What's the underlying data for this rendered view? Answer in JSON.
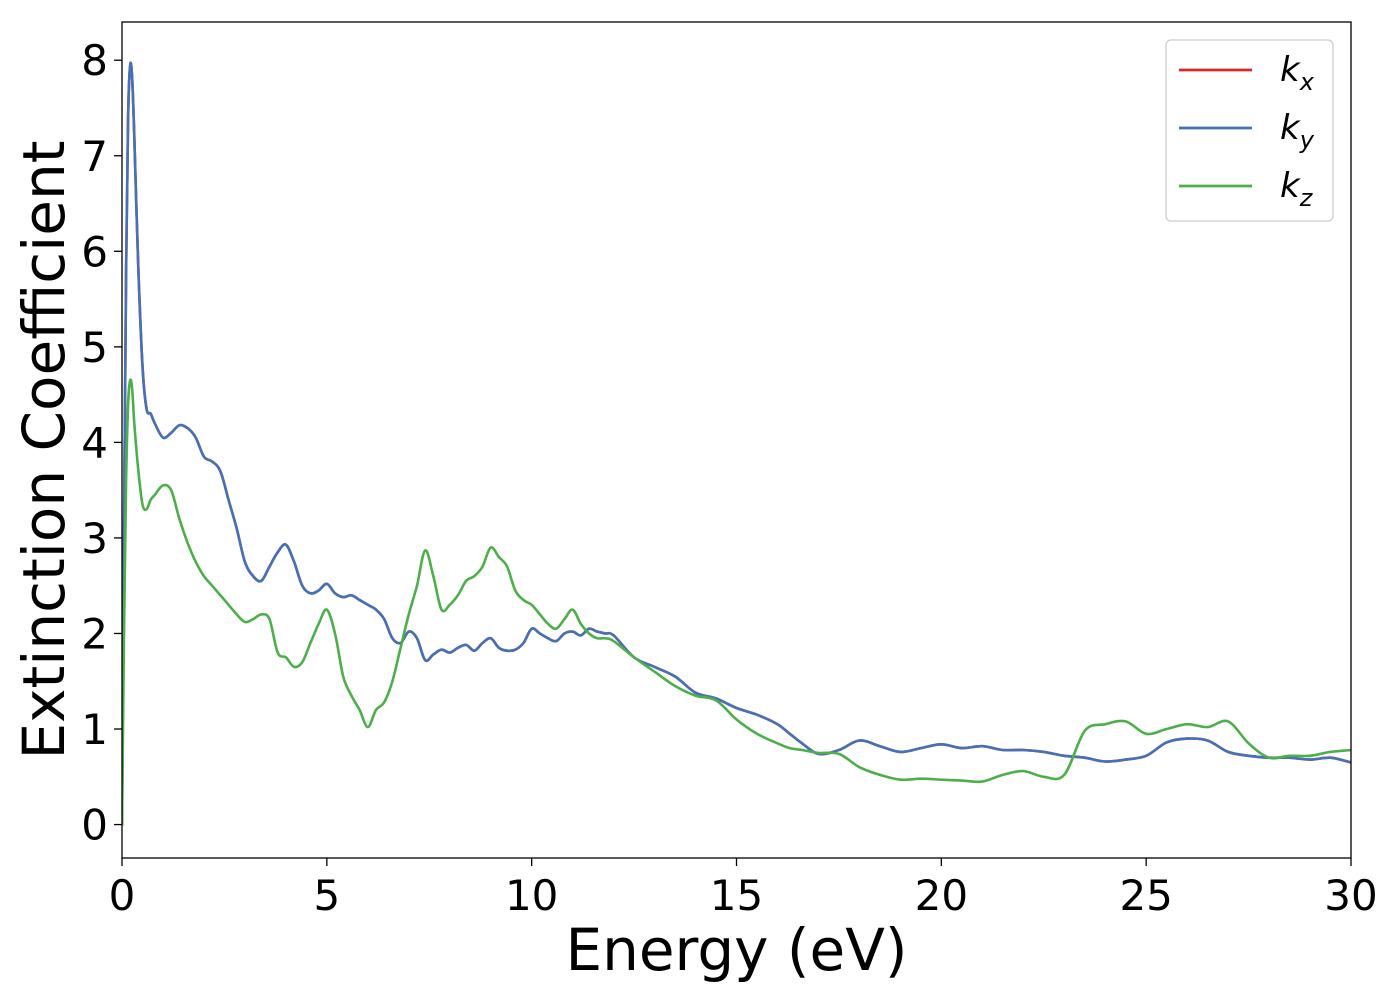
{
  "chart_data": {
    "type": "line",
    "xlabel": "Energy (eV)",
    "ylabel": "Extinction Coefficient",
    "xlim": [
      0,
      30
    ],
    "ylim": [
      -0.35,
      8.4
    ],
    "xticks": [
      0,
      5,
      10,
      15,
      20,
      25,
      30
    ],
    "yticks": [
      0,
      1,
      2,
      3,
      4,
      5,
      6,
      7,
      8
    ],
    "legend": "top-right",
    "grid": false,
    "series": [
      {
        "name": "k",
        "subscript": "x",
        "color": "#d62728",
        "x": [
          0,
          0.05,
          0.1,
          0.15,
          0.2,
          0.25,
          0.3,
          0.4,
          0.5,
          0.6,
          0.7,
          0.8,
          1.0,
          1.2,
          1.4,
          1.6,
          1.8,
          2.0,
          2.2,
          2.4,
          2.6,
          2.8,
          3.0,
          3.2,
          3.4,
          3.6,
          3.8,
          4.0,
          4.2,
          4.4,
          4.6,
          4.8,
          5.0,
          5.2,
          5.4,
          5.6,
          5.8,
          6.0,
          6.2,
          6.4,
          6.6,
          6.8,
          7.0,
          7.2,
          7.4,
          7.6,
          7.8,
          8.0,
          8.2,
          8.4,
          8.6,
          8.8,
          9.0,
          9.2,
          9.4,
          9.6,
          9.8,
          10.0,
          10.2,
          10.4,
          10.6,
          10.8,
          11.0,
          11.2,
          11.4,
          11.6,
          11.8,
          12.0,
          12.5,
          13.0,
          13.5,
          14.0,
          14.5,
          15.0,
          15.5,
          16.0,
          16.3,
          16.6,
          17.0,
          17.5,
          18.0,
          18.5,
          19.0,
          19.5,
          20.0,
          20.5,
          21.0,
          21.5,
          22.0,
          22.5,
          23.0,
          23.5,
          24.0,
          24.5,
          25.0,
          25.5,
          26.0,
          26.5,
          27.0,
          27.5,
          28.0,
          28.5,
          29.0,
          29.5,
          30.0
        ],
        "y": [
          0,
          3.0,
          5.8,
          7.4,
          7.95,
          7.8,
          7.2,
          5.8,
          4.8,
          4.35,
          4.3,
          4.2,
          4.05,
          4.1,
          4.18,
          4.15,
          4.05,
          3.85,
          3.8,
          3.7,
          3.4,
          3.1,
          2.75,
          2.6,
          2.55,
          2.7,
          2.85,
          2.93,
          2.75,
          2.5,
          2.42,
          2.45,
          2.52,
          2.42,
          2.38,
          2.4,
          2.35,
          2.3,
          2.25,
          2.15,
          1.95,
          1.9,
          2.02,
          1.95,
          1.72,
          1.78,
          1.83,
          1.8,
          1.85,
          1.88,
          1.82,
          1.9,
          1.95,
          1.85,
          1.82,
          1.83,
          1.9,
          2.05,
          2.0,
          1.95,
          1.92,
          2.0,
          2.02,
          1.98,
          2.05,
          2.02,
          2.0,
          1.98,
          1.75,
          1.65,
          1.55,
          1.38,
          1.32,
          1.22,
          1.15,
          1.05,
          0.95,
          0.85,
          0.74,
          0.78,
          0.88,
          0.82,
          0.76,
          0.8,
          0.84,
          0.8,
          0.82,
          0.78,
          0.78,
          0.76,
          0.72,
          0.7,
          0.66,
          0.68,
          0.72,
          0.86,
          0.9,
          0.88,
          0.76,
          0.72,
          0.7,
          0.7,
          0.68,
          0.7,
          0.65
        ]
      },
      {
        "name": "k",
        "subscript": "y",
        "color": "#4472b8",
        "x": [
          0,
          0.05,
          0.1,
          0.15,
          0.2,
          0.25,
          0.3,
          0.4,
          0.5,
          0.6,
          0.7,
          0.8,
          1.0,
          1.2,
          1.4,
          1.6,
          1.8,
          2.0,
          2.2,
          2.4,
          2.6,
          2.8,
          3.0,
          3.2,
          3.4,
          3.6,
          3.8,
          4.0,
          4.2,
          4.4,
          4.6,
          4.8,
          5.0,
          5.2,
          5.4,
          5.6,
          5.8,
          6.0,
          6.2,
          6.4,
          6.6,
          6.8,
          7.0,
          7.2,
          7.4,
          7.6,
          7.8,
          8.0,
          8.2,
          8.4,
          8.6,
          8.8,
          9.0,
          9.2,
          9.4,
          9.6,
          9.8,
          10.0,
          10.2,
          10.4,
          10.6,
          10.8,
          11.0,
          11.2,
          11.4,
          11.6,
          11.8,
          12.0,
          12.5,
          13.0,
          13.5,
          14.0,
          14.5,
          15.0,
          15.5,
          16.0,
          16.3,
          16.6,
          17.0,
          17.5,
          18.0,
          18.5,
          19.0,
          19.5,
          20.0,
          20.5,
          21.0,
          21.5,
          22.0,
          22.5,
          23.0,
          23.5,
          24.0,
          24.5,
          25.0,
          25.5,
          26.0,
          26.5,
          27.0,
          27.5,
          28.0,
          28.5,
          29.0,
          29.5,
          30.0
        ],
        "y": [
          0,
          3.0,
          5.8,
          7.4,
          7.95,
          7.8,
          7.2,
          5.8,
          4.8,
          4.35,
          4.3,
          4.2,
          4.05,
          4.1,
          4.18,
          4.15,
          4.05,
          3.85,
          3.8,
          3.7,
          3.4,
          3.1,
          2.75,
          2.6,
          2.55,
          2.7,
          2.85,
          2.93,
          2.75,
          2.5,
          2.42,
          2.45,
          2.52,
          2.42,
          2.38,
          2.4,
          2.35,
          2.3,
          2.25,
          2.15,
          1.95,
          1.9,
          2.02,
          1.95,
          1.72,
          1.78,
          1.83,
          1.8,
          1.85,
          1.88,
          1.82,
          1.9,
          1.95,
          1.85,
          1.82,
          1.83,
          1.9,
          2.05,
          2.0,
          1.95,
          1.92,
          2.0,
          2.02,
          1.98,
          2.05,
          2.02,
          2.0,
          1.98,
          1.75,
          1.65,
          1.55,
          1.38,
          1.32,
          1.22,
          1.15,
          1.05,
          0.95,
          0.85,
          0.74,
          0.78,
          0.88,
          0.82,
          0.76,
          0.8,
          0.84,
          0.8,
          0.82,
          0.78,
          0.78,
          0.76,
          0.72,
          0.7,
          0.66,
          0.68,
          0.72,
          0.86,
          0.9,
          0.88,
          0.76,
          0.72,
          0.7,
          0.7,
          0.68,
          0.7,
          0.65
        ]
      },
      {
        "name": "k",
        "subscript": "z",
        "color": "#4daf4a",
        "x": [
          0,
          0.05,
          0.1,
          0.15,
          0.2,
          0.25,
          0.3,
          0.4,
          0.5,
          0.6,
          0.7,
          0.8,
          1.0,
          1.2,
          1.4,
          1.6,
          1.8,
          2.0,
          2.2,
          2.4,
          2.6,
          2.8,
          3.0,
          3.2,
          3.4,
          3.6,
          3.8,
          4.0,
          4.2,
          4.4,
          4.6,
          4.8,
          5.0,
          5.2,
          5.4,
          5.6,
          5.8,
          6.0,
          6.2,
          6.4,
          6.6,
          6.8,
          7.0,
          7.2,
          7.4,
          7.6,
          7.8,
          8.0,
          8.2,
          8.4,
          8.6,
          8.8,
          9.0,
          9.2,
          9.4,
          9.6,
          9.8,
          10.0,
          10.2,
          10.4,
          10.6,
          10.8,
          11.0,
          11.2,
          11.4,
          11.6,
          11.8,
          12.0,
          12.5,
          13.0,
          13.5,
          14.0,
          14.5,
          15.0,
          15.5,
          16.0,
          16.3,
          16.6,
          17.0,
          17.5,
          18.0,
          18.5,
          19.0,
          19.5,
          20.0,
          20.5,
          21.0,
          21.5,
          22.0,
          22.5,
          23.0,
          23.5,
          24.0,
          24.5,
          25.0,
          25.5,
          26.0,
          26.5,
          27.0,
          27.5,
          28.0,
          28.5,
          29.0,
          29.5,
          30.0
        ],
        "y": [
          0,
          2.0,
          3.6,
          4.4,
          4.65,
          4.55,
          4.2,
          3.7,
          3.35,
          3.3,
          3.4,
          3.45,
          3.55,
          3.5,
          3.2,
          2.95,
          2.75,
          2.6,
          2.5,
          2.4,
          2.3,
          2.2,
          2.12,
          2.15,
          2.2,
          2.15,
          1.8,
          1.75,
          1.65,
          1.7,
          1.9,
          2.1,
          2.25,
          2.0,
          1.55,
          1.35,
          1.2,
          1.02,
          1.2,
          1.28,
          1.5,
          1.85,
          2.2,
          2.5,
          2.87,
          2.6,
          2.25,
          2.3,
          2.4,
          2.55,
          2.6,
          2.7,
          2.9,
          2.8,
          2.7,
          2.45,
          2.35,
          2.3,
          2.2,
          2.1,
          2.05,
          2.15,
          2.25,
          2.1,
          2.0,
          1.95,
          1.95,
          1.92,
          1.75,
          1.6,
          1.45,
          1.35,
          1.3,
          1.1,
          0.95,
          0.85,
          0.8,
          0.78,
          0.75,
          0.74,
          0.6,
          0.52,
          0.47,
          0.48,
          0.47,
          0.46,
          0.45,
          0.52,
          0.56,
          0.5,
          0.52,
          0.98,
          1.05,
          1.08,
          0.95,
          1.0,
          1.05,
          1.02,
          1.08,
          0.85,
          0.7,
          0.72,
          0.72,
          0.76,
          0.78
        ]
      }
    ]
  }
}
